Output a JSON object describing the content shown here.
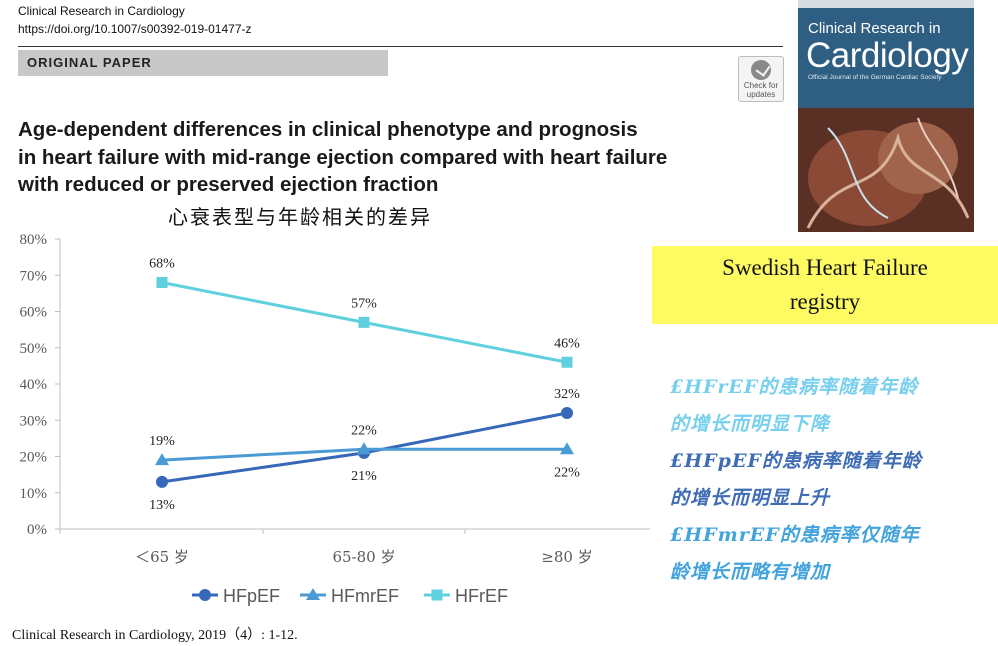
{
  "header": {
    "journal": "Clinical Research in Cardiology",
    "doi": "https://doi.org/10.1007/s00392-019-01477-z",
    "section": "ORIGINAL PAPER",
    "check_updates_line1": "Check for",
    "check_updates_line2": "updates"
  },
  "paper_title": {
    "line1": "Age-dependent differences in clinical phenotype and prognosis",
    "line2": "in heart failure with mid-range ejection compared with heart failure",
    "line3": "with reduced or preserved ejection fraction"
  },
  "cn_subtitle": "心衰表型与年龄相关的差异",
  "cover": {
    "line1": "Clinical Research in",
    "line2": "Cardiology",
    "line3": "Official Journal of the German Cardiac Society"
  },
  "registry": {
    "line1": "Swedish Heart Failure",
    "line2": "registry"
  },
  "notes": {
    "n1a": "£HFrEF的患病率随着年龄",
    "n1b": "的增长而明显下降",
    "n2a": "£HFpEF的患病率随着年龄",
    "n2b": "的增长而明显上升",
    "n3a": "£HFmrEF的患病率仅随年",
    "n3b": "龄增长而略有增加"
  },
  "citation": "Clinical Research in Cardiology, 2019（4）: 1-12.",
  "colors": {
    "HFpEF": "#3667b8",
    "HFmrEF": "#4a9bd4",
    "HFrEF": "#5fd0dd"
  },
  "chart_data": {
    "type": "line",
    "title": "心衰表型与年龄相关的差异",
    "categories": [
      "＜65 岁",
      "65-80 岁",
      "≥80 岁"
    ],
    "yticks": [
      "0%",
      "10%",
      "20%",
      "30%",
      "40%",
      "50%",
      "60%",
      "70%",
      "80%"
    ],
    "ylim": [
      0,
      80
    ],
    "series": [
      {
        "name": "HFpEF",
        "marker": "circle",
        "values": [
          13,
          21,
          32
        ],
        "labels": [
          "13%",
          "21%",
          "32%"
        ],
        "label_pos": [
          "below",
          "below",
          "above"
        ]
      },
      {
        "name": "HFmrEF",
        "marker": "triangle",
        "values": [
          19,
          22,
          22
        ],
        "labels": [
          "19%",
          "22%",
          "22%"
        ],
        "label_pos": [
          "above",
          "above",
          "below"
        ]
      },
      {
        "name": "HFrEF",
        "marker": "square",
        "values": [
          68,
          57,
          46
        ],
        "labels": [
          "68%",
          "57%",
          "46%"
        ],
        "label_pos": [
          "above",
          "above",
          "above"
        ]
      }
    ]
  }
}
